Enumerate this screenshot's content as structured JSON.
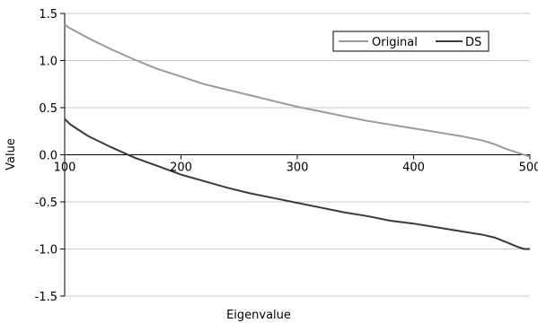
{
  "chart_data": {
    "type": "line",
    "title": "",
    "xlabel": "Eigenvalue",
    "ylabel": "Value",
    "xlim": [
      100,
      500
    ],
    "ylim": [
      -1.5,
      1.5
    ],
    "x_ticks": [
      100,
      200,
      300,
      400,
      500
    ],
    "y_ticks": [
      -1.5,
      -1.0,
      -0.5,
      0.0,
      0.5,
      1.0,
      1.5
    ],
    "x_tick_labels": [
      "100",
      "200",
      "300",
      "400",
      "500"
    ],
    "y_tick_labels": [
      "-1.5",
      "-1.0",
      "-0.5",
      "0.0",
      "0.5",
      "1.0",
      "1.5"
    ],
    "grid": "horizontal",
    "legend_position": "top-right",
    "series": [
      {
        "name": "Original",
        "color": "#9a9a9a",
        "x": [
          100,
          105,
          120,
          140,
          160,
          180,
          200,
          220,
          240,
          260,
          280,
          300,
          320,
          340,
          360,
          380,
          400,
          420,
          440,
          460,
          470,
          480,
          490,
          500
        ],
        "y": [
          1.38,
          1.34,
          1.24,
          1.12,
          1.01,
          0.91,
          0.83,
          0.75,
          0.69,
          0.63,
          0.57,
          0.51,
          0.46,
          0.41,
          0.36,
          0.32,
          0.28,
          0.24,
          0.2,
          0.15,
          0.11,
          0.06,
          0.02,
          -0.02
        ]
      },
      {
        "name": "DS",
        "color": "#3a3a3a",
        "x": [
          100,
          105,
          120,
          140,
          160,
          180,
          200,
          220,
          240,
          260,
          280,
          300,
          320,
          340,
          360,
          380,
          400,
          420,
          440,
          460,
          470,
          480,
          490,
          495,
          500
        ],
        "y": [
          0.38,
          0.32,
          0.2,
          0.08,
          -0.03,
          -0.12,
          -0.21,
          -0.28,
          -0.35,
          -0.41,
          -0.46,
          -0.51,
          -0.56,
          -0.61,
          -0.65,
          -0.7,
          -0.73,
          -0.77,
          -0.81,
          -0.85,
          -0.88,
          -0.93,
          -0.98,
          -1.0,
          -1.0
        ]
      }
    ]
  }
}
